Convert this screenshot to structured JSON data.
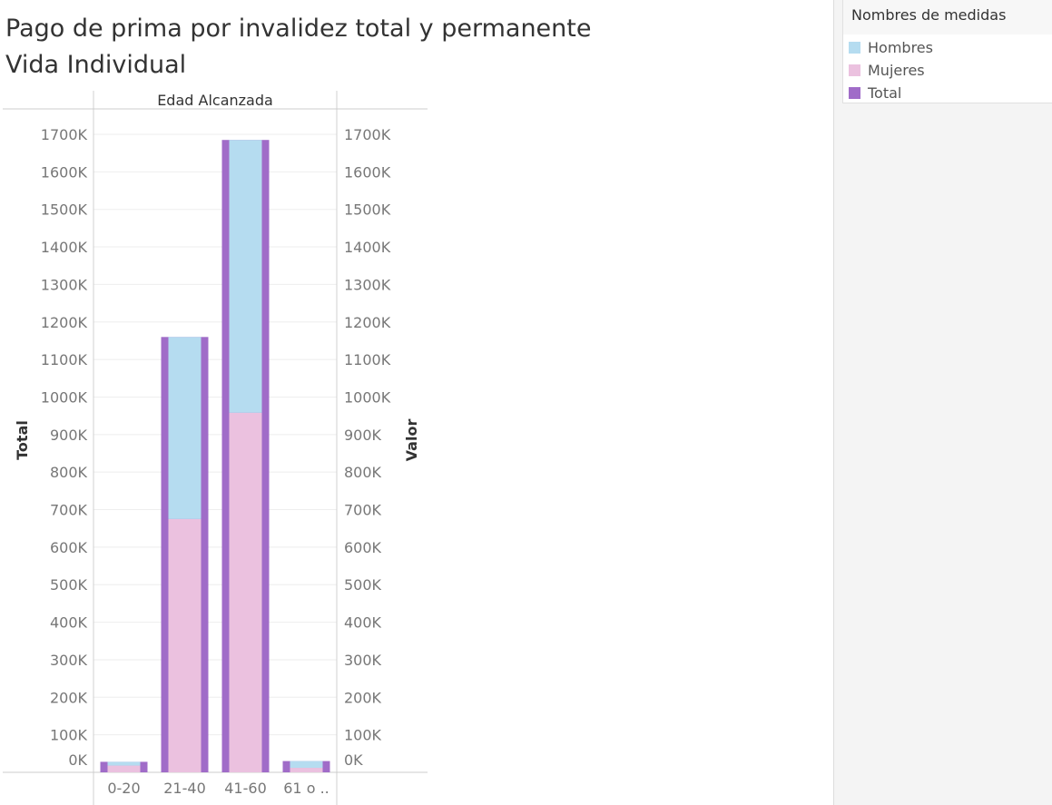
{
  "title": {
    "line1": "Pago de prima por invalidez total y permanente",
    "line2": "Vida Individual"
  },
  "legend": {
    "title": "Nombres de medidas",
    "items": [
      {
        "label": "Hombres",
        "color": "#b5dcf0"
      },
      {
        "label": "Mujeres",
        "color": "#ebc1df"
      },
      {
        "label": "Total",
        "color": "#a06cc8"
      }
    ]
  },
  "chart_data": {
    "type": "bar",
    "header": "Edad Alcanzada",
    "categories": [
      "0-20",
      "21-40",
      "41-60",
      "61 o .."
    ],
    "ylabel_left": "Total",
    "ylabel_right": "Valor",
    "ylim": [
      0,
      1700000
    ],
    "yticks": [
      0,
      100000,
      200000,
      300000,
      400000,
      500000,
      600000,
      700000,
      800000,
      900000,
      1000000,
      1100000,
      1200000,
      1300000,
      1400000,
      1500000,
      1600000,
      1700000
    ],
    "ytick_labels": [
      "0K",
      "100K",
      "200K",
      "300K",
      "400K",
      "500K",
      "600K",
      "700K",
      "800K",
      "900K",
      "1000K",
      "1100K",
      "1200K",
      "1300K",
      "1400K",
      "1500K",
      "1600K",
      "1700K"
    ],
    "series": [
      {
        "name": "Total",
        "values": [
          28000,
          1160000,
          1685000,
          30000
        ]
      },
      {
        "name": "Mujeres",
        "values": [
          18000,
          675000,
          958000,
          12000
        ]
      },
      {
        "name": "Hombres",
        "values": [
          10000,
          485000,
          727000,
          18000
        ]
      }
    ],
    "grid": true,
    "legend_position": "right"
  }
}
